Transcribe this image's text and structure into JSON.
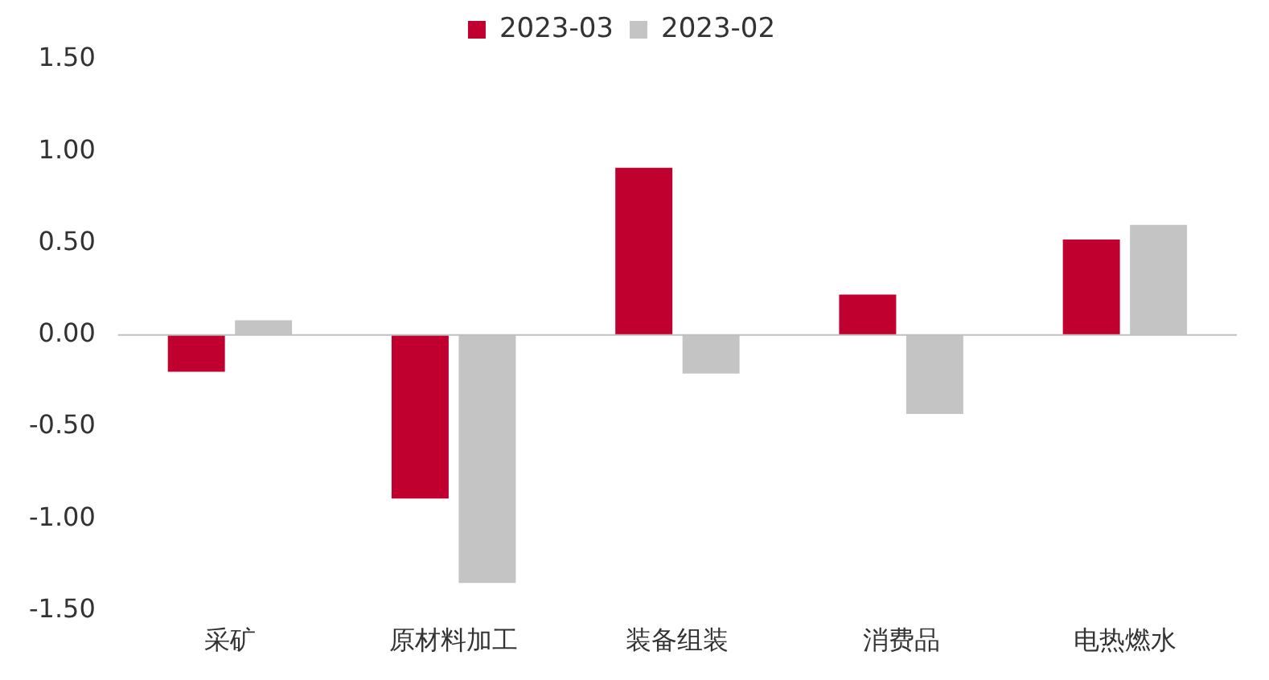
{
  "chart_data": {
    "type": "bar",
    "categories": [
      "采矿",
      "原材料加工",
      "装备组装",
      "消费品",
      "电热燃水"
    ],
    "series": [
      {
        "name": "2023-03",
        "color": "#c0002f",
        "values": [
          -0.2,
          -0.89,
          0.91,
          0.22,
          0.52
        ]
      },
      {
        "name": "2023-02",
        "color": "#c4c4c4",
        "values": [
          0.08,
          -1.35,
          -0.21,
          -0.43,
          0.6
        ]
      }
    ],
    "ylim": [
      -1.5,
      1.5
    ],
    "yticks": [
      {
        "value": -1.5,
        "label": "-1.50"
      },
      {
        "value": -1,
        "label": "-1.00"
      },
      {
        "value": -0.5,
        "label": "-0.50"
      },
      {
        "value": 0,
        "label": "0.00"
      },
      {
        "value": 0.5,
        "label": "0.50"
      },
      {
        "value": 1,
        "label": "1.00"
      },
      {
        "value": 1.5,
        "label": "1.50"
      }
    ],
    "ref_lines": [
      {
        "axis": "y",
        "value": 0,
        "color": "#bfbfbf"
      }
    ],
    "grid": false,
    "legend": "top"
  }
}
